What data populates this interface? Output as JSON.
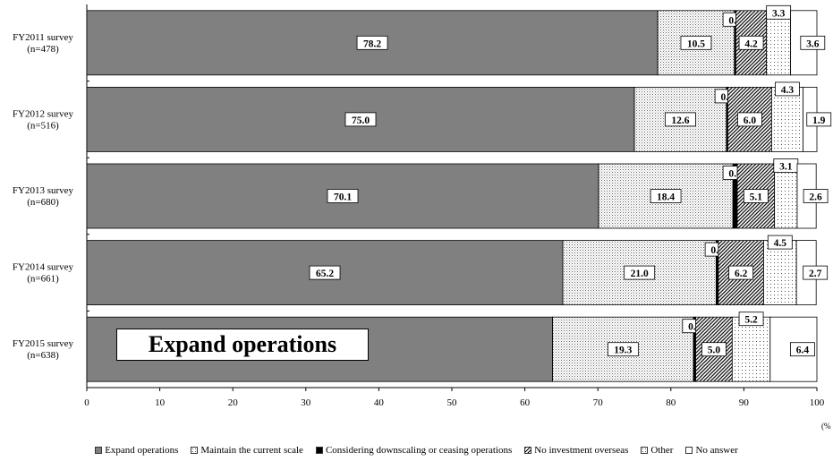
{
  "chart_data": {
    "type": "bar",
    "orientation": "horizontal-stacked",
    "categories": [
      "FY2011 survey|(n=478)",
      "FY2012 survey|(n=516)",
      "FY2013 survey|(n=680)",
      "FY2014 survey|(n=661)",
      "FY2015 survey|(n=638)"
    ],
    "series": [
      {
        "name": "Expand operations",
        "values": [
          78.2,
          75.0,
          70.1,
          65.2,
          63.8
        ],
        "color": "#808080",
        "pattern": "solid"
      },
      {
        "name": "Maintain the current scale",
        "values": [
          10.5,
          12.6,
          18.4,
          21.0,
          19.3
        ],
        "color": "#e8e8e8",
        "pattern": "dots"
      },
      {
        "name": "Considering downscaling or ceasing operations",
        "values": [
          0.2,
          0.2,
          0.6,
          0.3,
          0.3
        ],
        "color": "#000000",
        "pattern": "solid"
      },
      {
        "name": "No investment overseas",
        "values": [
          4.2,
          6.0,
          5.1,
          6.2,
          5.0
        ],
        "color": "#ffffff",
        "pattern": "diagonal"
      },
      {
        "name": "Other",
        "values": [
          3.3,
          4.3,
          3.1,
          4.5,
          5.2
        ],
        "color": "#ffffff",
        "pattern": "sparse-dots"
      },
      {
        "name": "No answer",
        "values": [
          3.6,
          1.9,
          2.6,
          2.7,
          6.4
        ],
        "color": "#ffffff",
        "pattern": "solid"
      }
    ],
    "value_labels": [
      [
        "78.2",
        "10.5",
        "0.2",
        "4.2",
        "3.3",
        "3.6"
      ],
      [
        "75.0",
        "12.6",
        "0.2",
        "6.0",
        "4.3",
        "1.9"
      ],
      [
        "70.1",
        "18.4",
        "0.6",
        "5.1",
        "3.1",
        "2.6"
      ],
      [
        "65.2",
        "21.0",
        "0.3",
        "6.2",
        "4.5",
        "2.7"
      ],
      [
        "63.8",
        "19.3",
        "0.3",
        "5.0",
        "5.2",
        "6.4"
      ]
    ],
    "xlim": [
      0,
      100
    ],
    "xticks": [
      0,
      10,
      20,
      30,
      40,
      50,
      60,
      70,
      80,
      90,
      100
    ],
    "x_unit": "(%",
    "annotation": "Expand operations",
    "legend_position": "bottom",
    "grid": false
  }
}
